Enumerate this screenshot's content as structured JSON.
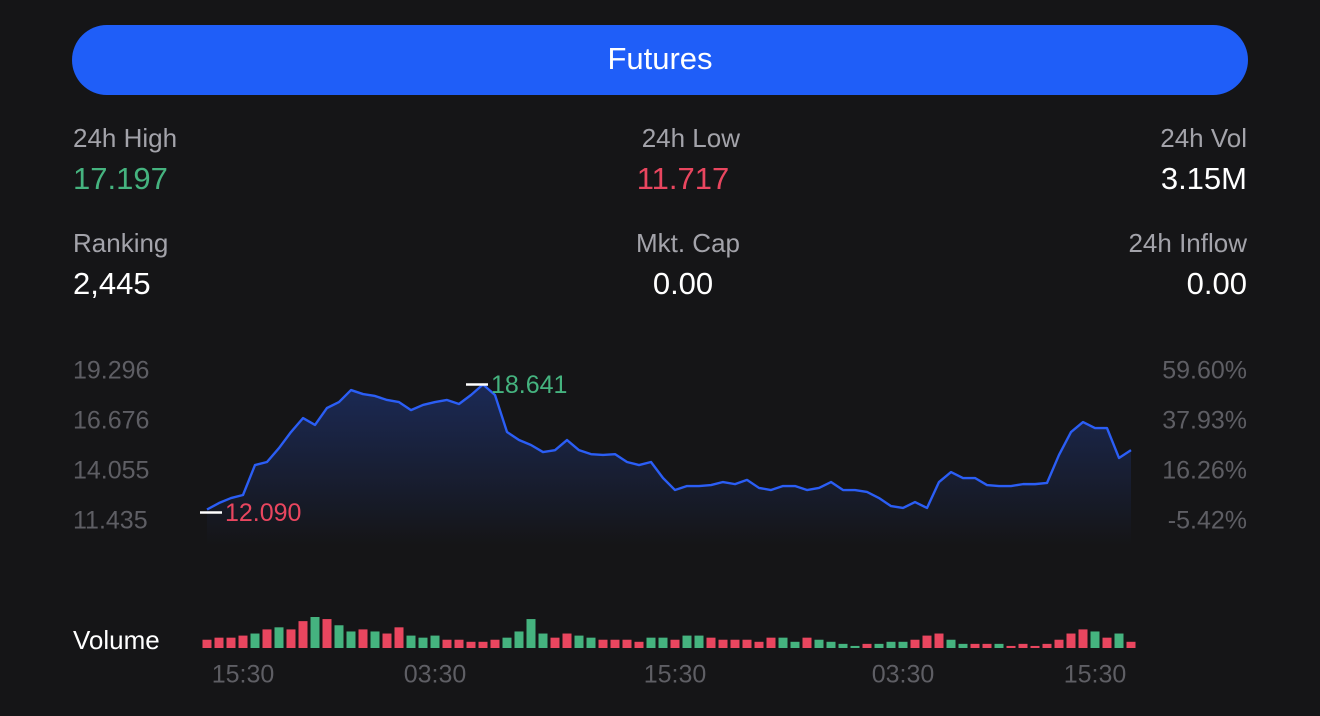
{
  "header": {
    "title": "Futures"
  },
  "colors": {
    "up": "#45b37f",
    "down": "#e9465f",
    "line": "#2b5ef5",
    "button": "#1f5ef8"
  },
  "stats": [
    [
      {
        "label": "24h High",
        "value": "17.197",
        "tone": "up"
      },
      {
        "label": "24h Low",
        "value": "11.717",
        "tone": "down"
      },
      {
        "label": "24h Vol",
        "value": "3.15M"
      }
    ],
    [
      {
        "label": "Ranking",
        "value": "2,445"
      },
      {
        "label": "Mkt. Cap",
        "value": "0.00"
      },
      {
        "label": "24h Inflow",
        "value": "0.00"
      }
    ]
  ],
  "chart_data": {
    "type": "line",
    "categories": [
      null,
      null,
      null,
      "15:30",
      null,
      null,
      null,
      null,
      null,
      null,
      null,
      null,
      null,
      null,
      null,
      null,
      null,
      null,
      null,
      "03:30",
      null,
      null,
      null,
      null,
      null,
      null,
      null,
      null,
      null,
      null,
      null,
      null,
      null,
      null,
      null,
      null,
      null,
      null,
      null,
      "15:30",
      null,
      null,
      null,
      null,
      null,
      null,
      null,
      null,
      null,
      null,
      null,
      null,
      null,
      null,
      null,
      null,
      null,
      null,
      "03:30",
      null,
      null,
      null,
      null,
      null,
      null,
      null,
      null,
      null,
      null,
      null,
      null,
      null,
      null,
      null,
      "15:30",
      null,
      null,
      null
    ],
    "values": [
      12.09,
      12.43,
      12.69,
      12.85,
      14.42,
      14.58,
      15.31,
      16.15,
      16.88,
      16.52,
      17.41,
      17.72,
      18.35,
      18.14,
      18.04,
      17.83,
      17.72,
      17.3,
      17.57,
      17.72,
      17.83,
      17.62,
      18.09,
      18.641,
      18.09,
      16.15,
      15.73,
      15.47,
      15.1,
      15.2,
      15.73,
      15.2,
      14.99,
      14.95,
      14.99,
      14.58,
      14.42,
      14.58,
      13.74,
      13.11,
      13.32,
      13.32,
      13.37,
      13.53,
      13.42,
      13.64,
      13.22,
      13.11,
      13.32,
      13.32,
      13.11,
      13.22,
      13.53,
      13.11,
      13.11,
      13.01,
      12.69,
      12.27,
      12.17,
      12.48,
      12.17,
      13.53,
      14.05,
      13.74,
      13.74,
      13.37,
      13.32,
      13.32,
      13.42,
      13.42,
      13.48,
      14.95,
      16.15,
      16.67,
      16.36,
      16.36,
      14.79,
      15.2
    ],
    "value_labels": [
      "12.090",
      null,
      null,
      null,
      null,
      null,
      null,
      null,
      null,
      null,
      null,
      null,
      null,
      null,
      null,
      null,
      null,
      null,
      null,
      null,
      null,
      null,
      null,
      "18.641",
      null,
      null,
      null,
      null,
      null,
      null,
      null,
      null,
      null,
      null,
      null,
      null,
      null,
      null,
      null,
      null,
      null,
      null,
      null,
      null,
      null,
      null,
      null,
      null,
      null,
      null,
      null,
      null,
      null,
      null,
      null,
      null,
      null,
      null,
      null,
      null,
      null,
      null,
      null,
      null,
      null,
      null,
      null,
      null,
      null,
      null,
      null,
      null,
      null,
      null,
      null,
      null,
      null,
      null
    ],
    "ylim": [
      11.435,
      19.296
    ],
    "yticks": [
      19.296,
      16.676,
      14.055,
      11.435
    ],
    "y2lim": [
      -5.42,
      59.6
    ],
    "y2ticks": [
      {
        "value": 59.6,
        "label": "59.60%"
      },
      {
        "value": 37.93,
        "label": "37.93%"
      },
      {
        "value": 16.26,
        "label": "16.26%"
      },
      {
        "value": -5.42,
        "label": "-5.42%"
      }
    ],
    "volume": {
      "label": "Volume",
      "values": [
        8,
        10,
        10,
        12,
        14,
        18,
        20,
        18,
        26,
        30,
        28,
        22,
        16,
        18,
        16,
        14,
        20,
        12,
        10,
        12,
        8,
        8,
        6,
        6,
        8,
        10,
        16,
        28,
        14,
        10,
        14,
        12,
        10,
        8,
        8,
        8,
        6,
        10,
        10,
        8,
        12,
        12,
        10,
        8,
        8,
        8,
        6,
        10,
        10,
        6,
        10,
        8,
        6,
        4,
        2,
        4,
        4,
        6,
        6,
        8,
        12,
        14,
        8,
        4,
        4,
        4,
        4,
        2,
        4,
        2,
        4,
        8,
        14,
        18,
        16,
        10,
        14,
        6
      ],
      "up": [
        false,
        false,
        false,
        false,
        true,
        false,
        true,
        false,
        false,
        true,
        false,
        true,
        true,
        false,
        true,
        false,
        false,
        true,
        true,
        true,
        false,
        false,
        false,
        false,
        false,
        true,
        true,
        true,
        true,
        false,
        false,
        true,
        true,
        false,
        false,
        false,
        false,
        true,
        true,
        false,
        true,
        true,
        false,
        false,
        false,
        false,
        false,
        false,
        true,
        true,
        false,
        true,
        true,
        true,
        true,
        false,
        true,
        true,
        true,
        false,
        false,
        false,
        true,
        true,
        false,
        false,
        true,
        false,
        false,
        false,
        false,
        false,
        false,
        false,
        true,
        false,
        true,
        false
      ]
    }
  }
}
